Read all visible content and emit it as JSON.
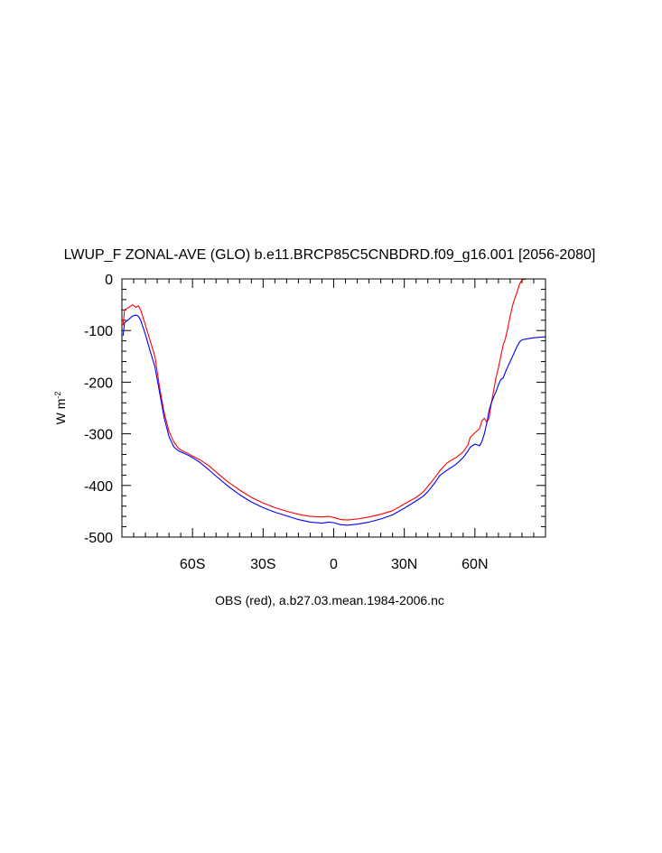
{
  "chart_data": {
    "type": "line",
    "title": "LWUP_F ZONAL-AVE (GLO) b.e11.BRCP85C5CNBDRD.f09_g16.001 [2056-2080]",
    "ylabel": {
      "base": "W m",
      "sup": "-2"
    },
    "xlabel": "",
    "footer": "OBS (red), a.b27.03.mean.1984-2006.nc",
    "xlim": [
      -90,
      90
    ],
    "ylim": [
      -500,
      0
    ],
    "xticks": [
      {
        "value": -60,
        "label": "60S"
      },
      {
        "value": -30,
        "label": "30S"
      },
      {
        "value": 0,
        "label": "0"
      },
      {
        "value": 30,
        "label": "30N"
      },
      {
        "value": 60,
        "label": "60N"
      }
    ],
    "yticks": [
      {
        "value": 0,
        "label": "0"
      },
      {
        "value": -100,
        "label": "-100"
      },
      {
        "value": -200,
        "label": "-200"
      },
      {
        "value": -300,
        "label": "-300"
      },
      {
        "value": -400,
        "label": "-400"
      },
      {
        "value": -500,
        "label": "-500"
      }
    ],
    "series": [
      {
        "color": "#ff0000",
        "points": [
          [
            -89.5,
            -90
          ],
          [
            -88.9,
            -60
          ],
          [
            -87,
            -55
          ],
          [
            -85.5,
            -50
          ],
          [
            -84,
            -55
          ],
          [
            -83,
            -52
          ],
          [
            -82,
            -60
          ],
          [
            -80,
            -90
          ],
          [
            -78,
            -120
          ],
          [
            -76,
            -150
          ],
          [
            -74,
            -210
          ],
          [
            -72,
            -260
          ],
          [
            -70,
            -295
          ],
          [
            -68,
            -315
          ],
          [
            -66,
            -328
          ],
          [
            -64,
            -334
          ],
          [
            -62,
            -338
          ],
          [
            -60,
            -343
          ],
          [
            -57,
            -350
          ],
          [
            -53,
            -362
          ],
          [
            -50,
            -374
          ],
          [
            -45,
            -393
          ],
          [
            -40,
            -409
          ],
          [
            -35,
            -423
          ],
          [
            -30,
            -434
          ],
          [
            -25,
            -443
          ],
          [
            -20,
            -450
          ],
          [
            -15,
            -456
          ],
          [
            -10,
            -460
          ],
          [
            -5,
            -461
          ],
          [
            -2,
            -460
          ],
          [
            0,
            -462
          ],
          [
            3,
            -466
          ],
          [
            6,
            -467
          ],
          [
            10,
            -465
          ],
          [
            15,
            -461
          ],
          [
            20,
            -456
          ],
          [
            25,
            -449
          ],
          [
            30,
            -436
          ],
          [
            35,
            -423
          ],
          [
            38,
            -413
          ],
          [
            40,
            -402
          ],
          [
            43,
            -385
          ],
          [
            45,
            -372
          ],
          [
            48,
            -357
          ],
          [
            50,
            -351
          ],
          [
            52,
            -346
          ],
          [
            55,
            -335
          ],
          [
            57,
            -322
          ],
          [
            58,
            -307
          ],
          [
            60,
            -298
          ],
          [
            62,
            -290
          ],
          [
            63,
            -275
          ],
          [
            64,
            -270
          ],
          [
            65,
            -278
          ],
          [
            66,
            -270
          ],
          [
            67,
            -240
          ],
          [
            68,
            -215
          ],
          [
            69,
            -190
          ],
          [
            70,
            -172
          ],
          [
            71,
            -150
          ],
          [
            72,
            -128
          ],
          [
            73,
            -115
          ],
          [
            74,
            -95
          ],
          [
            75,
            -72
          ],
          [
            76,
            -52
          ],
          [
            77,
            -37
          ],
          [
            78,
            -25
          ],
          [
            79,
            -10
          ],
          [
            80,
            -2
          ],
          [
            82,
            0
          ],
          [
            85,
            0
          ],
          [
            88,
            0
          ],
          [
            90,
            0
          ]
        ]
      },
      {
        "color": "#0000ff",
        "points": [
          [
            -89.5,
            -110
          ],
          [
            -88.9,
            -85
          ],
          [
            -87,
            -78
          ],
          [
            -85.5,
            -72
          ],
          [
            -84,
            -70
          ],
          [
            -83,
            -72
          ],
          [
            -82,
            -80
          ],
          [
            -80,
            -108
          ],
          [
            -78,
            -140
          ],
          [
            -76,
            -170
          ],
          [
            -74,
            -220
          ],
          [
            -72,
            -270
          ],
          [
            -70,
            -305
          ],
          [
            -68,
            -325
          ],
          [
            -66,
            -333
          ],
          [
            -64,
            -337
          ],
          [
            -62,
            -341
          ],
          [
            -60,
            -346
          ],
          [
            -57,
            -355
          ],
          [
            -53,
            -370
          ],
          [
            -50,
            -382
          ],
          [
            -45,
            -401
          ],
          [
            -40,
            -418
          ],
          [
            -35,
            -432
          ],
          [
            -30,
            -443
          ],
          [
            -25,
            -452
          ],
          [
            -20,
            -459
          ],
          [
            -15,
            -466
          ],
          [
            -10,
            -471
          ],
          [
            -5,
            -473
          ],
          [
            -2,
            -471
          ],
          [
            0,
            -472
          ],
          [
            3,
            -476
          ],
          [
            6,
            -477
          ],
          [
            10,
            -475
          ],
          [
            15,
            -471
          ],
          [
            20,
            -465
          ],
          [
            25,
            -457
          ],
          [
            30,
            -444
          ],
          [
            35,
            -430
          ],
          [
            38,
            -421
          ],
          [
            40,
            -412
          ],
          [
            43,
            -395
          ],
          [
            45,
            -381
          ],
          [
            48,
            -371
          ],
          [
            50,
            -365
          ],
          [
            52,
            -359
          ],
          [
            55,
            -346
          ],
          [
            57,
            -334
          ],
          [
            58,
            -326
          ],
          [
            60,
            -320
          ],
          [
            62,
            -323
          ],
          [
            63,
            -315
          ],
          [
            64,
            -300
          ],
          [
            65,
            -280
          ],
          [
            66,
            -255
          ],
          [
            67,
            -240
          ],
          [
            68,
            -228
          ],
          [
            69,
            -218
          ],
          [
            70,
            -205
          ],
          [
            71,
            -195
          ],
          [
            72,
            -192
          ],
          [
            73,
            -180
          ],
          [
            74,
            -170
          ],
          [
            75,
            -160
          ],
          [
            76,
            -150
          ],
          [
            77,
            -140
          ],
          [
            78,
            -130
          ],
          [
            79,
            -122
          ],
          [
            80,
            -118
          ],
          [
            82,
            -116
          ],
          [
            85,
            -114
          ],
          [
            88,
            -113
          ],
          [
            90,
            -112
          ]
        ]
      }
    ]
  }
}
